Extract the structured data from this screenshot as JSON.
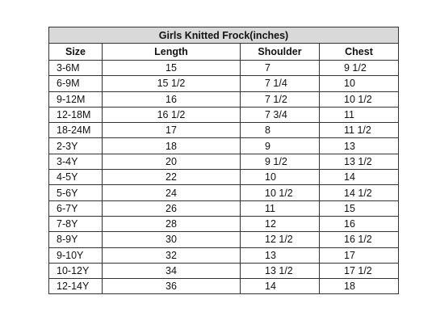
{
  "table": {
    "title": "Girls Knitted Frock(inches)",
    "columns": [
      "Size",
      "Length",
      "Shoulder",
      "Chest"
    ],
    "rows": [
      [
        "3-6M",
        "15",
        "7",
        "9 1/2"
      ],
      [
        "6-9M",
        "15 1/2",
        "7 1/4",
        "10"
      ],
      [
        "9-12M",
        "16",
        "7 1/2",
        "10 1/2"
      ],
      [
        "12-18M",
        "16 1/2",
        "7 3/4",
        "11"
      ],
      [
        "18-24M",
        "17",
        "8",
        "11 1/2"
      ],
      [
        "2-3Y",
        "18",
        "9",
        "13"
      ],
      [
        "3-4Y",
        "20",
        "9 1/2",
        "13 1/2"
      ],
      [
        "4-5Y",
        "22",
        "10",
        "14"
      ],
      [
        "5-6Y",
        "24",
        "10 1/2",
        "14 1/2"
      ],
      [
        "6-7Y",
        "26",
        "11",
        "15"
      ],
      [
        "7-8Y",
        "28",
        "12",
        "16"
      ],
      [
        "8-9Y",
        "30",
        "12 1/2",
        "16 1/2"
      ],
      [
        "9-10Y",
        "32",
        "13",
        "17"
      ],
      [
        "10-12Y",
        "34",
        "13 1/2",
        "17 1/2"
      ],
      [
        "12-14Y",
        "36",
        "14",
        "18"
      ]
    ]
  }
}
